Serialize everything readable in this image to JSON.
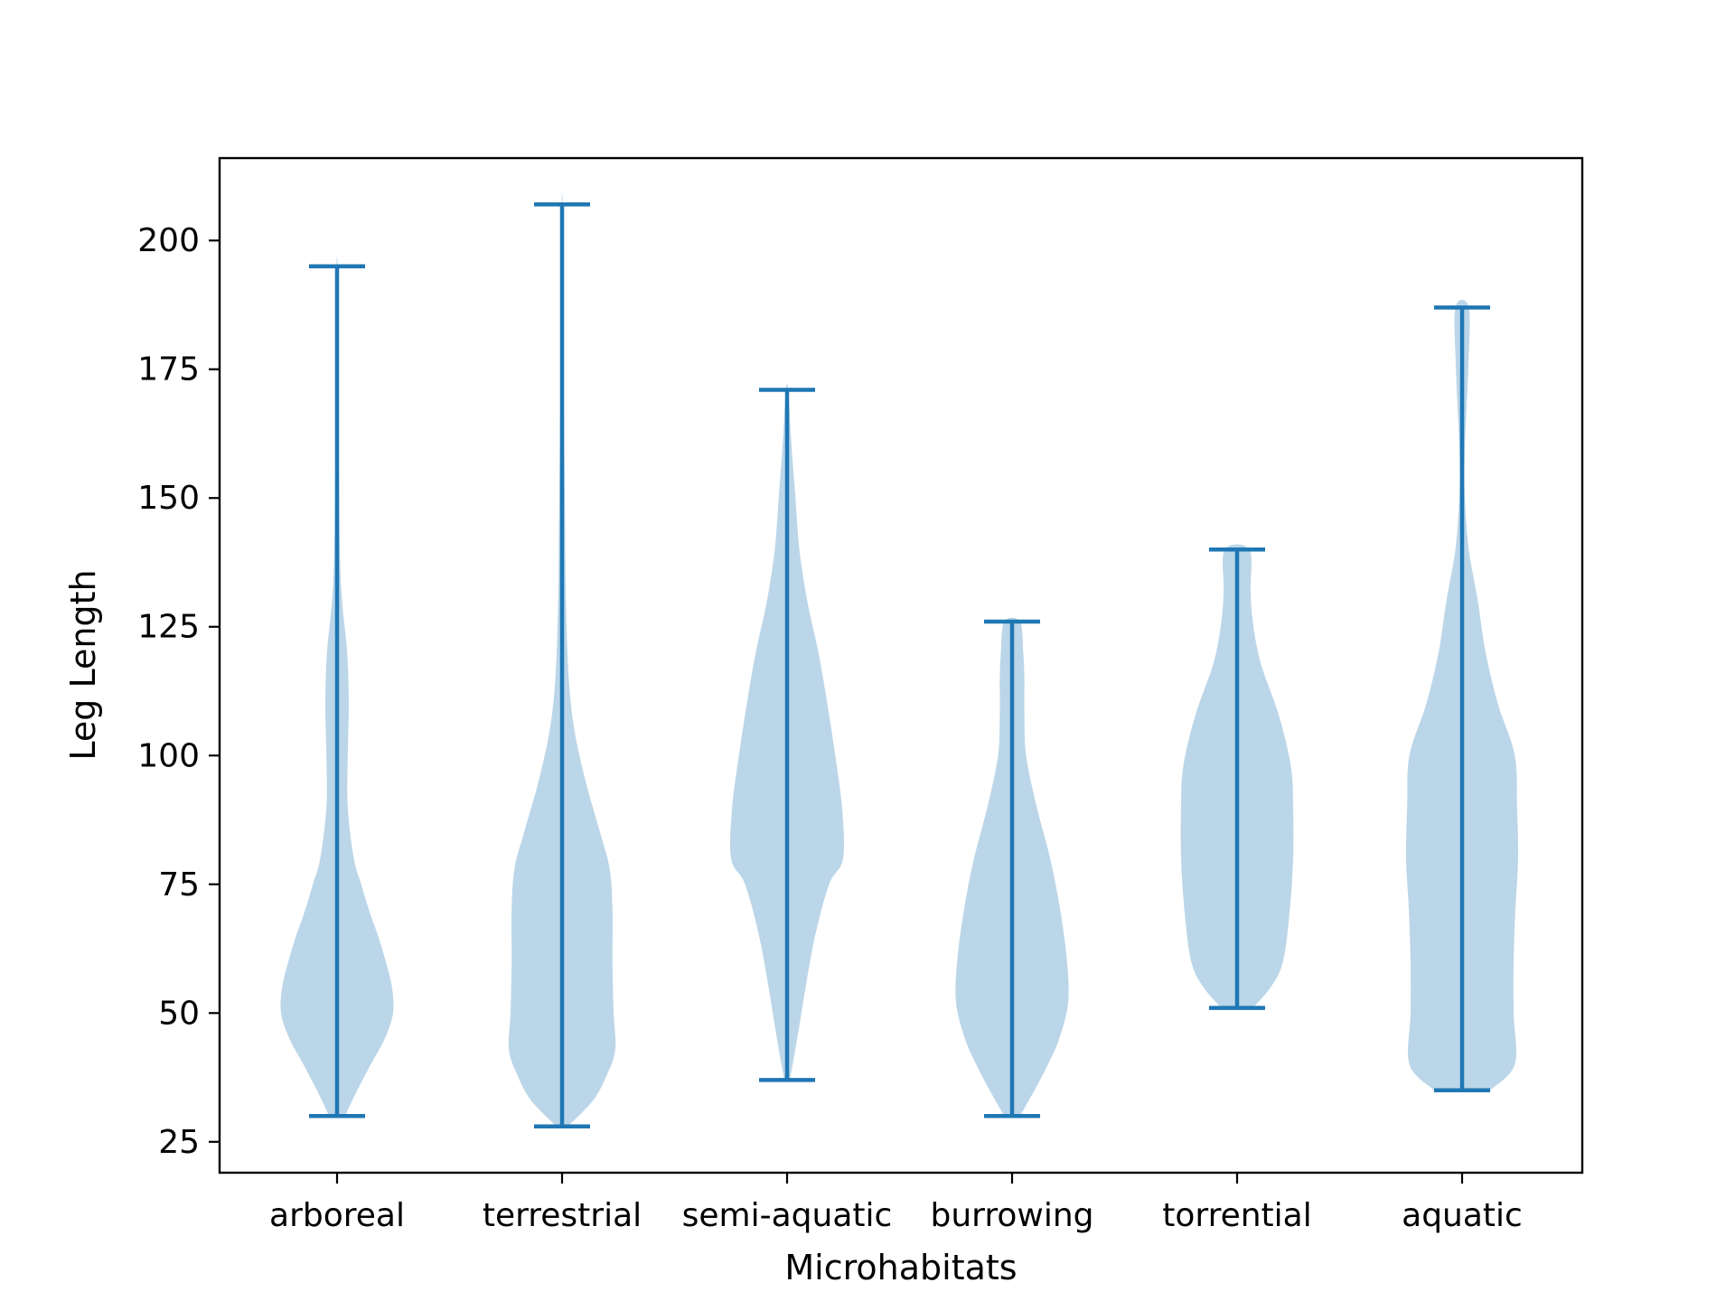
{
  "chart_data": {
    "type": "violin",
    "title": "",
    "xlabel": "Microhabitats",
    "ylabel": "Leg Length",
    "ylim": [
      19,
      216
    ],
    "yticks": [
      25,
      50,
      75,
      100,
      125,
      150,
      175,
      200
    ],
    "grid": false,
    "categories": [
      "arboreal",
      "terrestrial",
      "semi-aquatic",
      "burrowing",
      "torrential",
      "aquatic"
    ],
    "series": [
      {
        "min": 30,
        "max": 195,
        "profile": [
          [
            30,
            0.14
          ],
          [
            35,
            0.36
          ],
          [
            40,
            0.6
          ],
          [
            45,
            0.85
          ],
          [
            50,
            1.0
          ],
          [
            55,
            0.98
          ],
          [
            60,
            0.87
          ],
          [
            65,
            0.73
          ],
          [
            70,
            0.57
          ],
          [
            75,
            0.43
          ],
          [
            80,
            0.3
          ],
          [
            90,
            0.19
          ],
          [
            100,
            0.19
          ],
          [
            110,
            0.21
          ],
          [
            120,
            0.18
          ],
          [
            130,
            0.09
          ],
          [
            140,
            0.05
          ],
          [
            160,
            0.03
          ],
          [
            180,
            0.015
          ],
          [
            195,
            0.01
          ]
        ]
      },
      {
        "min": 28,
        "max": 207,
        "profile": [
          [
            28,
            0.1
          ],
          [
            33,
            0.55
          ],
          [
            38,
            0.8
          ],
          [
            43,
            0.95
          ],
          [
            50,
            0.92
          ],
          [
            60,
            0.9
          ],
          [
            70,
            0.9
          ],
          [
            78,
            0.85
          ],
          [
            85,
            0.68
          ],
          [
            95,
            0.42
          ],
          [
            105,
            0.22
          ],
          [
            115,
            0.12
          ],
          [
            130,
            0.07
          ],
          [
            150,
            0.05
          ],
          [
            170,
            0.03
          ],
          [
            190,
            0.02
          ],
          [
            207,
            0.01
          ]
        ]
      },
      {
        "min": 37,
        "max": 171,
        "profile": [
          [
            37,
            0.05
          ],
          [
            45,
            0.18
          ],
          [
            55,
            0.33
          ],
          [
            65,
            0.5
          ],
          [
            75,
            0.75
          ],
          [
            80,
            1.0
          ],
          [
            90,
            0.98
          ],
          [
            100,
            0.86
          ],
          [
            110,
            0.72
          ],
          [
            120,
            0.56
          ],
          [
            130,
            0.36
          ],
          [
            140,
            0.22
          ],
          [
            150,
            0.15
          ],
          [
            160,
            0.08
          ],
          [
            171,
            0.02
          ]
        ]
      },
      {
        "min": 30,
        "max": 126,
        "profile": [
          [
            30,
            0.14
          ],
          [
            35,
            0.4
          ],
          [
            40,
            0.64
          ],
          [
            45,
            0.84
          ],
          [
            52,
            1.0
          ],
          [
            60,
            0.98
          ],
          [
            70,
            0.86
          ],
          [
            80,
            0.68
          ],
          [
            90,
            0.44
          ],
          [
            100,
            0.25
          ],
          [
            108,
            0.22
          ],
          [
            115,
            0.22
          ],
          [
            120,
            0.2
          ],
          [
            126,
            0.14
          ]
        ]
      },
      {
        "min": 51,
        "max": 140,
        "profile": [
          [
            51,
            0.28
          ],
          [
            55,
            0.6
          ],
          [
            60,
            0.82
          ],
          [
            70,
            0.94
          ],
          [
            80,
            1.0
          ],
          [
            90,
            1.0
          ],
          [
            98,
            0.96
          ],
          [
            108,
            0.74
          ],
          [
            118,
            0.42
          ],
          [
            126,
            0.28
          ],
          [
            132,
            0.24
          ],
          [
            140,
            0.22
          ]
        ]
      },
      {
        "min": 35,
        "max": 187,
        "profile": [
          [
            35,
            0.5
          ],
          [
            40,
            0.94
          ],
          [
            50,
            0.92
          ],
          [
            60,
            0.92
          ],
          [
            70,
            0.95
          ],
          [
            80,
            1.0
          ],
          [
            90,
            0.98
          ],
          [
            100,
            0.94
          ],
          [
            110,
            0.64
          ],
          [
            120,
            0.42
          ],
          [
            130,
            0.28
          ],
          [
            140,
            0.12
          ],
          [
            150,
            0.05
          ],
          [
            160,
            0.05
          ],
          [
            175,
            0.11
          ],
          [
            187,
            0.12
          ]
        ]
      }
    ],
    "colors": {
      "body": "#1f77b4",
      "body_opacity": 0.3,
      "line": "#1f77b4"
    }
  }
}
